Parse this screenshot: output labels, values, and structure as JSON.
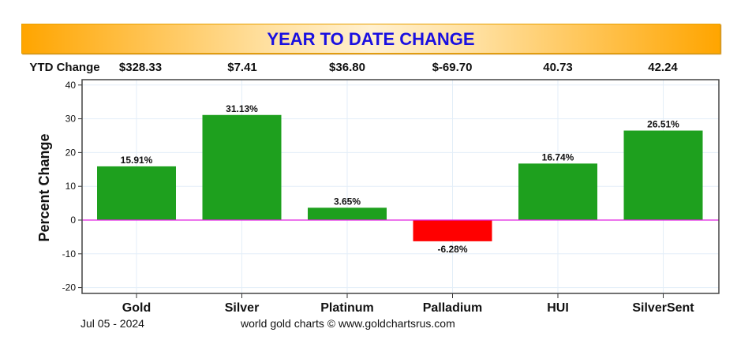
{
  "title": "YEAR TO DATE CHANGE",
  "ytd": {
    "label": "YTD Change",
    "values": [
      "$328.33",
      "$7.41",
      "$36.80",
      "$-69.70",
      "40.73",
      "42.24"
    ]
  },
  "footer": {
    "date": "Jul 05 - 2024",
    "credit": "world gold charts © www.goldchartsrus.com"
  },
  "colors": {
    "positive": "#1ea01e",
    "negative": "#ff0000",
    "zero_line": "#e020e0"
  },
  "chart_data": {
    "type": "bar",
    "title": "YEAR TO DATE CHANGE",
    "categories": [
      "Gold",
      "Silver",
      "Platinum",
      "Palladium",
      "HUI",
      "SilverSent"
    ],
    "values": [
      15.91,
      31.13,
      3.65,
      -6.28,
      16.74,
      26.51
    ],
    "data_labels": [
      "15.91%",
      "31.13%",
      "3.65%",
      "-6.28%",
      "16.74%",
      "26.51%"
    ],
    "ylabel": "Percent Change",
    "xlabel": "",
    "ylim": [
      -22,
      41
    ],
    "yticks": [
      -20,
      -10,
      0,
      10,
      20,
      30,
      40
    ],
    "grid": true
  }
}
